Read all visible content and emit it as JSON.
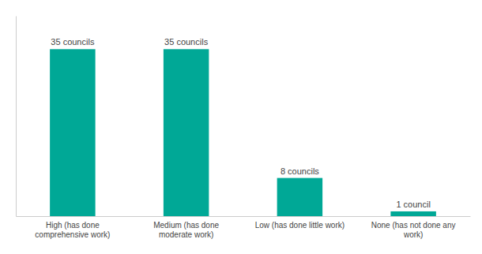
{
  "chart_data": {
    "type": "bar",
    "categories": [
      "High (has done\ncomprehensive work)",
      "Medium (has done\nmoderate work)",
      "Low (has done little work)",
      "None (has not done any\nwork)"
    ],
    "values": [
      35,
      35,
      8,
      1
    ],
    "value_labels": [
      "35 councils",
      "35 councils",
      "8 councils",
      "1 council"
    ],
    "color": "#00a896",
    "ylim": [
      0,
      42
    ],
    "data_labels": true,
    "tick_labels": "x",
    "grid": false
  }
}
